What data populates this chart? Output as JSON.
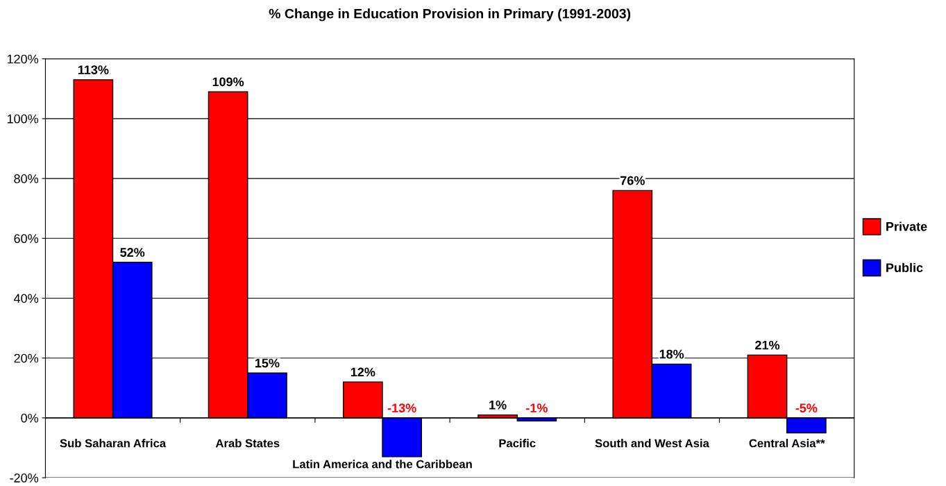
{
  "chart_data": {
    "type": "bar",
    "title": "% Change in Education Provision in Primary (1991-2003)",
    "categories": [
      "Sub Saharan Africa",
      "Arab States",
      "Latin America and the Caribbean",
      "Pacific",
      "South and West Asia",
      "Central Asia**"
    ],
    "series": [
      {
        "name": "Private",
        "color": "#ff0000",
        "values": [
          113,
          109,
          12,
          1,
          76,
          21
        ],
        "value_labels": [
          "113%",
          "109%",
          "12%",
          "1%",
          "76%",
          "21%"
        ]
      },
      {
        "name": "Public",
        "color": "#0000ff",
        "values": [
          52,
          15,
          -13,
          -1,
          18,
          -5
        ],
        "value_labels": [
          "52%",
          "15%",
          "-13%",
          "-1%",
          "18%",
          "-5%"
        ]
      }
    ],
    "ylim": [
      -20,
      120
    ],
    "yticks": [
      {
        "value": -20,
        "label": "-20%"
      },
      {
        "value": 0,
        "label": "0%"
      },
      {
        "value": 20,
        "label": "20%"
      },
      {
        "value": 40,
        "label": "40%"
      },
      {
        "value": 60,
        "label": "60%"
      },
      {
        "value": 80,
        "label": "80%"
      },
      {
        "value": 100,
        "label": "100%"
      },
      {
        "value": 120,
        "label": "120%"
      }
    ],
    "grid": "y",
    "legend": "right"
  }
}
